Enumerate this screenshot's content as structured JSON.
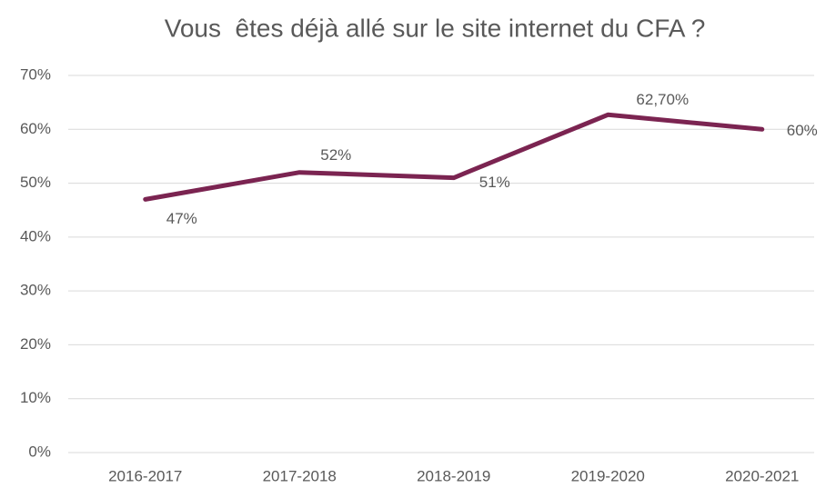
{
  "chart_data": {
    "type": "line",
    "title": "Vous  êtes déjà allé sur le site internet du CFA ?",
    "categories": [
      "2016-2017",
      "2017-2018",
      "2018-2019",
      "2019-2020",
      "2020-2021"
    ],
    "series": [
      {
        "name": "Vous êtes déjà allé sur le site internet du CFA ?",
        "color": "#7b2451",
        "values": [
          47,
          52,
          51,
          62.7,
          60
        ],
        "value_labels": [
          "47%",
          "52%",
          "51%",
          "62,70%",
          "60%"
        ]
      }
    ],
    "ylim": [
      0,
      70
    ],
    "yticks": [
      {
        "value": 0,
        "label": "0%"
      },
      {
        "value": 10,
        "label": "10%"
      },
      {
        "value": 20,
        "label": "20%"
      },
      {
        "value": 30,
        "label": "30%"
      },
      {
        "value": 40,
        "label": "40%"
      },
      {
        "value": 50,
        "label": "50%"
      },
      {
        "value": 60,
        "label": "60%"
      },
      {
        "value": 70,
        "label": "70%"
      }
    ],
    "grid": true
  }
}
